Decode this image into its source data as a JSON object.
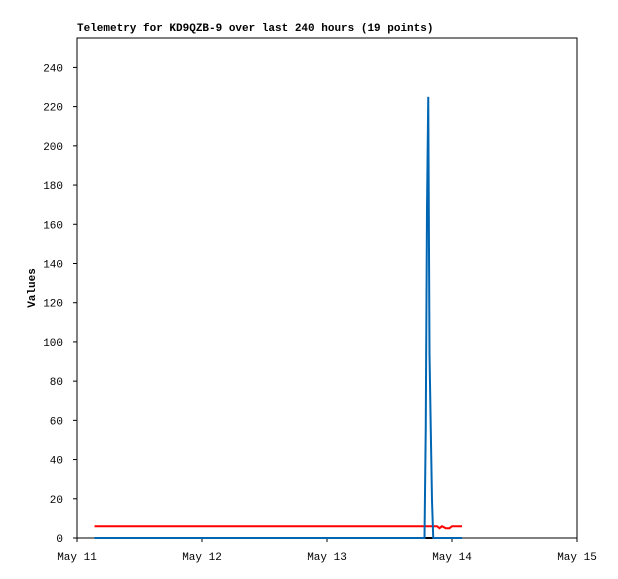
{
  "chart_data": {
    "type": "line",
    "title": "Telemetry for KD9QZB-9 over last 240 hours (19 points)",
    "y_label": "Values",
    "x": [
      11.14,
      13.78,
      13.79,
      13.8,
      13.81,
      13.82,
      13.83,
      13.84,
      13.85,
      13.86,
      13.87,
      13.88,
      13.9,
      13.92,
      13.95,
      13.98,
      14.0,
      14.03,
      14.08
    ],
    "series": [
      {
        "color": "#000000",
        "values": [
          0,
          0,
          0,
          0,
          0,
          0,
          0,
          0,
          0,
          0,
          0,
          0,
          0,
          0,
          0,
          0,
          0,
          0,
          0
        ]
      },
      {
        "color": "#ff0000",
        "values": [
          6,
          6,
          6,
          6,
          6,
          6,
          6,
          6,
          6,
          6,
          6,
          6,
          5,
          6,
          5,
          5,
          6,
          6,
          6
        ]
      },
      {
        "color": "#0066b3",
        "values": [
          0,
          0,
          56,
          168,
          225,
          94,
          56,
          19,
          0,
          0,
          0,
          0,
          0,
          0,
          0,
          0,
          0,
          0,
          0
        ]
      }
    ],
    "xlim": [
      11,
      15
    ],
    "xticks": [
      {
        "value": 11,
        "label": "May 11"
      },
      {
        "value": 12,
        "label": "May 12"
      },
      {
        "value": 13,
        "label": "May 13"
      },
      {
        "value": 14,
        "label": "May 14"
      },
      {
        "value": 15,
        "label": "May 15"
      }
    ],
    "ylim": [
      0,
      255
    ],
    "yticks": [
      0,
      20,
      40,
      60,
      80,
      100,
      120,
      140,
      160,
      180,
      200,
      220,
      240
    ],
    "grid": false
  }
}
